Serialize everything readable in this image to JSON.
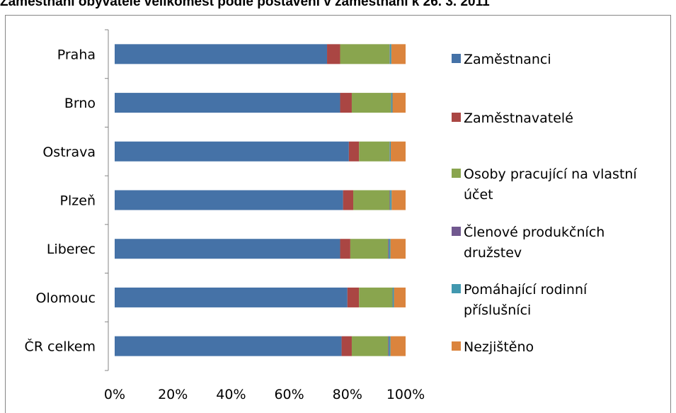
{
  "chart_data": {
    "type": "bar",
    "orientation": "horizontal",
    "stacked": "percent",
    "title": "Zaměstnaní obyvatelé velikomest podle postavení v zaměstnání k 26. 3. 2011",
    "categories": [
      "Praha",
      "Brno",
      "Ostrava",
      "Plzeň",
      "Liberec",
      "Olomouc",
      "ČR celkem"
    ],
    "series": [
      {
        "name": "Zaměstnanci",
        "color": "#4572A7",
        "values": [
          73.0,
          77.5,
          80.5,
          78.5,
          77.5,
          80.0,
          78.0
        ]
      },
      {
        "name": "Zaměstnavatelé",
        "color": "#AA4643",
        "values": [
          4.5,
          4.0,
          3.5,
          3.5,
          3.5,
          4.0,
          3.5
        ]
      },
      {
        "name": "Osoby pracující na vlastní účet",
        "color": "#89A54E",
        "values": [
          17.0,
          13.5,
          10.5,
          12.5,
          13.0,
          11.5,
          12.5
        ]
      },
      {
        "name": "Členové produkčních družstev",
        "color": "#71588F",
        "values": [
          0.1,
          0.1,
          0.1,
          0.2,
          0.3,
          0.1,
          0.3
        ]
      },
      {
        "name": "Pomáhající rodinní příslušníci",
        "color": "#4198AF",
        "values": [
          0.5,
          0.4,
          0.3,
          0.5,
          0.5,
          0.4,
          0.5
        ]
      },
      {
        "name": "Nezjištěno",
        "color": "#DB843D",
        "values": [
          4.9,
          4.5,
          5.1,
          4.8,
          5.2,
          4.0,
          5.2
        ]
      }
    ],
    "xlim": [
      0,
      100
    ],
    "x_ticks": [
      "0%",
      "20%",
      "40%",
      "60%",
      "80%",
      "100%"
    ],
    "grid": false,
    "legend_position": "right"
  }
}
